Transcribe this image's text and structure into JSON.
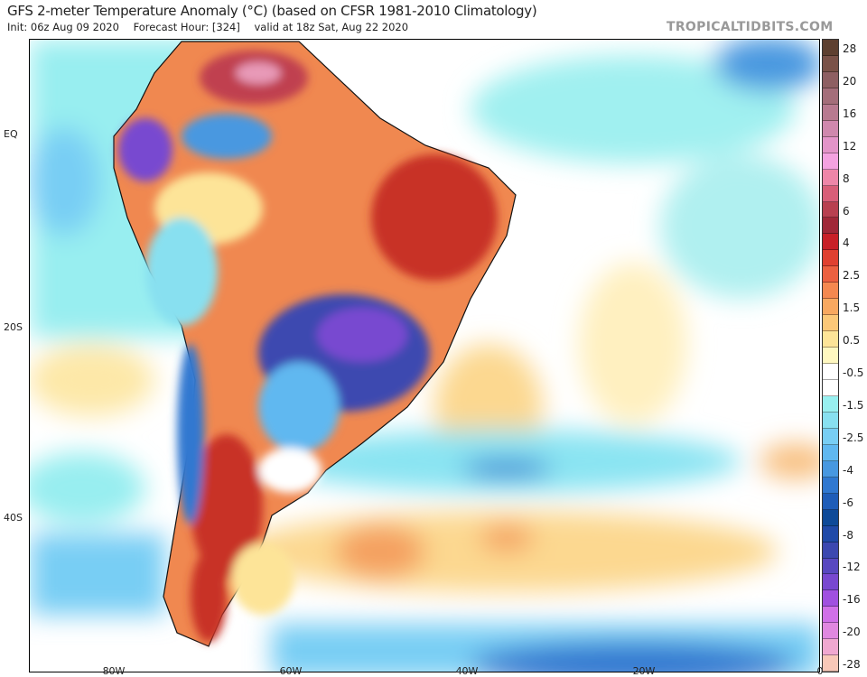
{
  "header": {
    "title": "GFS 2-meter Temperature Anomaly (°C) (based on CFSR 1981-2010 Climatology)",
    "init": "Init: 06z Aug 09 2020",
    "forecast_hour": "Forecast Hour: [324]",
    "valid": "valid at 18z Sat, Aug 22 2020",
    "watermark": "TROPICALTIDBITS.COM"
  },
  "axes": {
    "lat_labels": [
      "EQ",
      "20S",
      "40S"
    ],
    "lon_labels": [
      "80W",
      "60W",
      "40W",
      "20W",
      "0"
    ]
  },
  "colorbar": {
    "labels": [
      "28",
      "20",
      "16",
      "12",
      "8",
      "6",
      "4",
      "2.5",
      "1.5",
      "0.5",
      "-0.5",
      "-1.5",
      "-2.5",
      "-4",
      "-6",
      "-8",
      "-12",
      "-16",
      "-20",
      "-28"
    ],
    "colors": [
      "#5e4030",
      "#7a5248",
      "#8e5f62",
      "#a46e7a",
      "#b87a90",
      "#cf88ad",
      "#e394c8",
      "#f4a2e0",
      "#ee86a8",
      "#d85e78",
      "#b84050",
      "#a02838",
      "#c82028",
      "#e04030",
      "#ec6040",
      "#f48850",
      "#f8a860",
      "#fcc878",
      "#fde498",
      "#fff8c0",
      "#ffffff",
      "#ffffff",
      "#98f0f0",
      "#88e0f0",
      "#78cef4",
      "#60b8f0",
      "#4898e0",
      "#3078d0",
      "#1f5db8",
      "#0e4a98",
      "#204aa8",
      "#3c48b0",
      "#5848c0",
      "#7848d0",
      "#a050e0",
      "#d070e8",
      "#e088e0",
      "#f0a8d0",
      "#f8c8b8"
    ]
  }
}
